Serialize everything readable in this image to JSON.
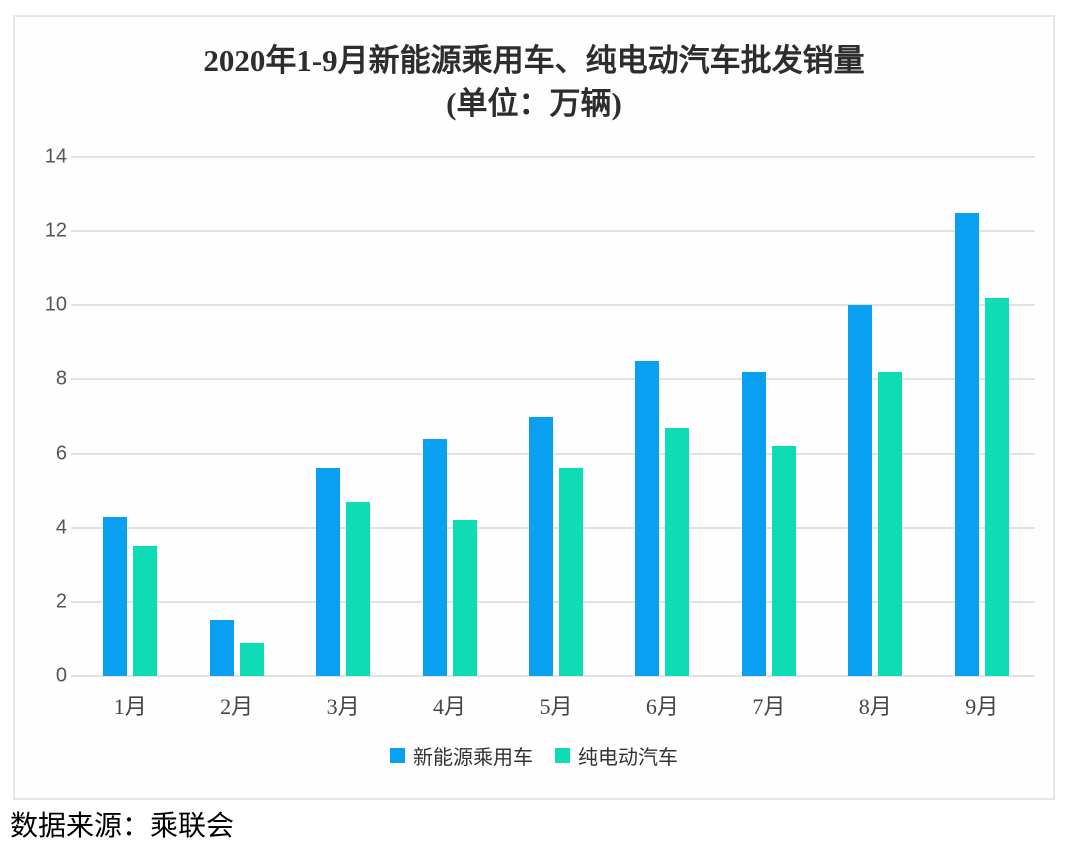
{
  "source_note": "数据来源：乘联会",
  "colors": {
    "series1": "#0AA0F2",
    "series2": "#0EDCB4",
    "gridline": "#e2e2e2",
    "axis_text": "#555555",
    "title_text": "#2d2d2d",
    "card_border": "#e6e6e6"
  },
  "chart_data": {
    "type": "bar",
    "title": "2020年1-9月新能源乘用车、纯电动汽车批发销量",
    "subtitle": "(单位：万辆)",
    "categories": [
      "1月",
      "2月",
      "3月",
      "4月",
      "5月",
      "6月",
      "7月",
      "8月",
      "9月"
    ],
    "series": [
      {
        "name": "新能源乘用车",
        "color": "#0AA0F2",
        "values": [
          4.3,
          1.5,
          5.6,
          6.4,
          7.0,
          8.5,
          8.2,
          10.0,
          12.5
        ]
      },
      {
        "name": "纯电动汽车",
        "color": "#0EDCB4",
        "values": [
          3.5,
          0.9,
          4.7,
          4.2,
          5.6,
          6.7,
          6.2,
          8.2,
          10.2
        ]
      }
    ],
    "xlabel": "",
    "ylabel": "",
    "ylim": [
      0,
      14
    ],
    "yticks": [
      0,
      2,
      4,
      6,
      8,
      10,
      12,
      14
    ],
    "grid": true,
    "legend_position": "bottom"
  }
}
